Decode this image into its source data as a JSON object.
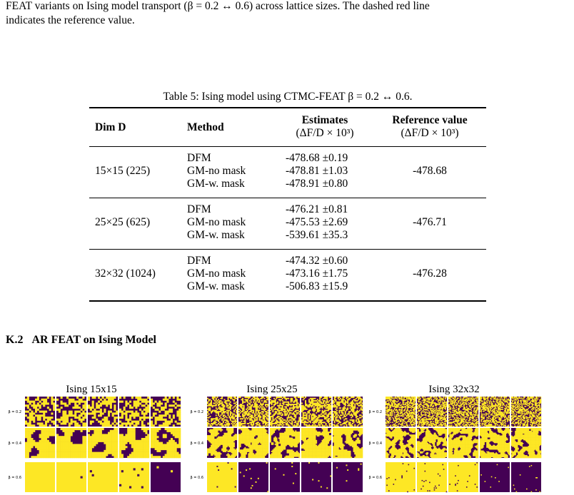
{
  "caption_lines": [
    "FEAT variants on Ising model transport (β = 0.2 ↔ 0.6) across lattice sizes. The dashed red line",
    "indicates the reference value."
  ],
  "table": {
    "caption": "Table 5: Ising model using CTMC-FEAT β = 0.2 ↔ 0.6.",
    "header": {
      "dim": "Dim D",
      "method": "Method",
      "estimates": [
        "Estimates",
        "(ΔF/D × 10³)"
      ],
      "reference": [
        "Reference value",
        "(ΔF/D × 10³)"
      ]
    },
    "groups": [
      {
        "dim": "15×15 (225)",
        "methods": [
          "DFM",
          "GM-no mask",
          "GM-w. mask"
        ],
        "estimates": [
          "-478.68 ±0.19",
          "-478.81 ±1.03",
          "-478.91 ±0.80"
        ],
        "reference": "-478.68"
      },
      {
        "dim": "25×25 (625)",
        "methods": [
          "DFM",
          "GM-no mask",
          "GM-w. mask"
        ],
        "estimates": [
          "-476.21 ±0.81",
          "-475.53 ±2.69",
          "-539.61 ±35.3"
        ],
        "reference": "-476.71"
      },
      {
        "dim": "32×32 (1024)",
        "methods": [
          "DFM",
          "GM-no mask",
          "GM-w. mask"
        ],
        "estimates": [
          "-474.32 ±0.60",
          "-473.16 ±1.75",
          "-506.83 ±15.9"
        ],
        "reference": "-476.28"
      }
    ]
  },
  "section": {
    "number": "K.2",
    "title": "AR FEAT on Ising Model"
  },
  "figure": {
    "panels": [
      {
        "title": "Ising 15x15",
        "row_labels": [
          "β = 0.2",
          "β = 0.4",
          "β = 0.6"
        ]
      },
      {
        "title": "Ising 25x25",
        "row_labels": [
          "β = 0.2",
          "β = 0.4",
          "β = 0.6"
        ]
      },
      {
        "title": "Ising 32x32",
        "row_labels": [
          "β = 0.2",
          "β = 0.4",
          "β = 0.6"
        ]
      }
    ]
  }
}
